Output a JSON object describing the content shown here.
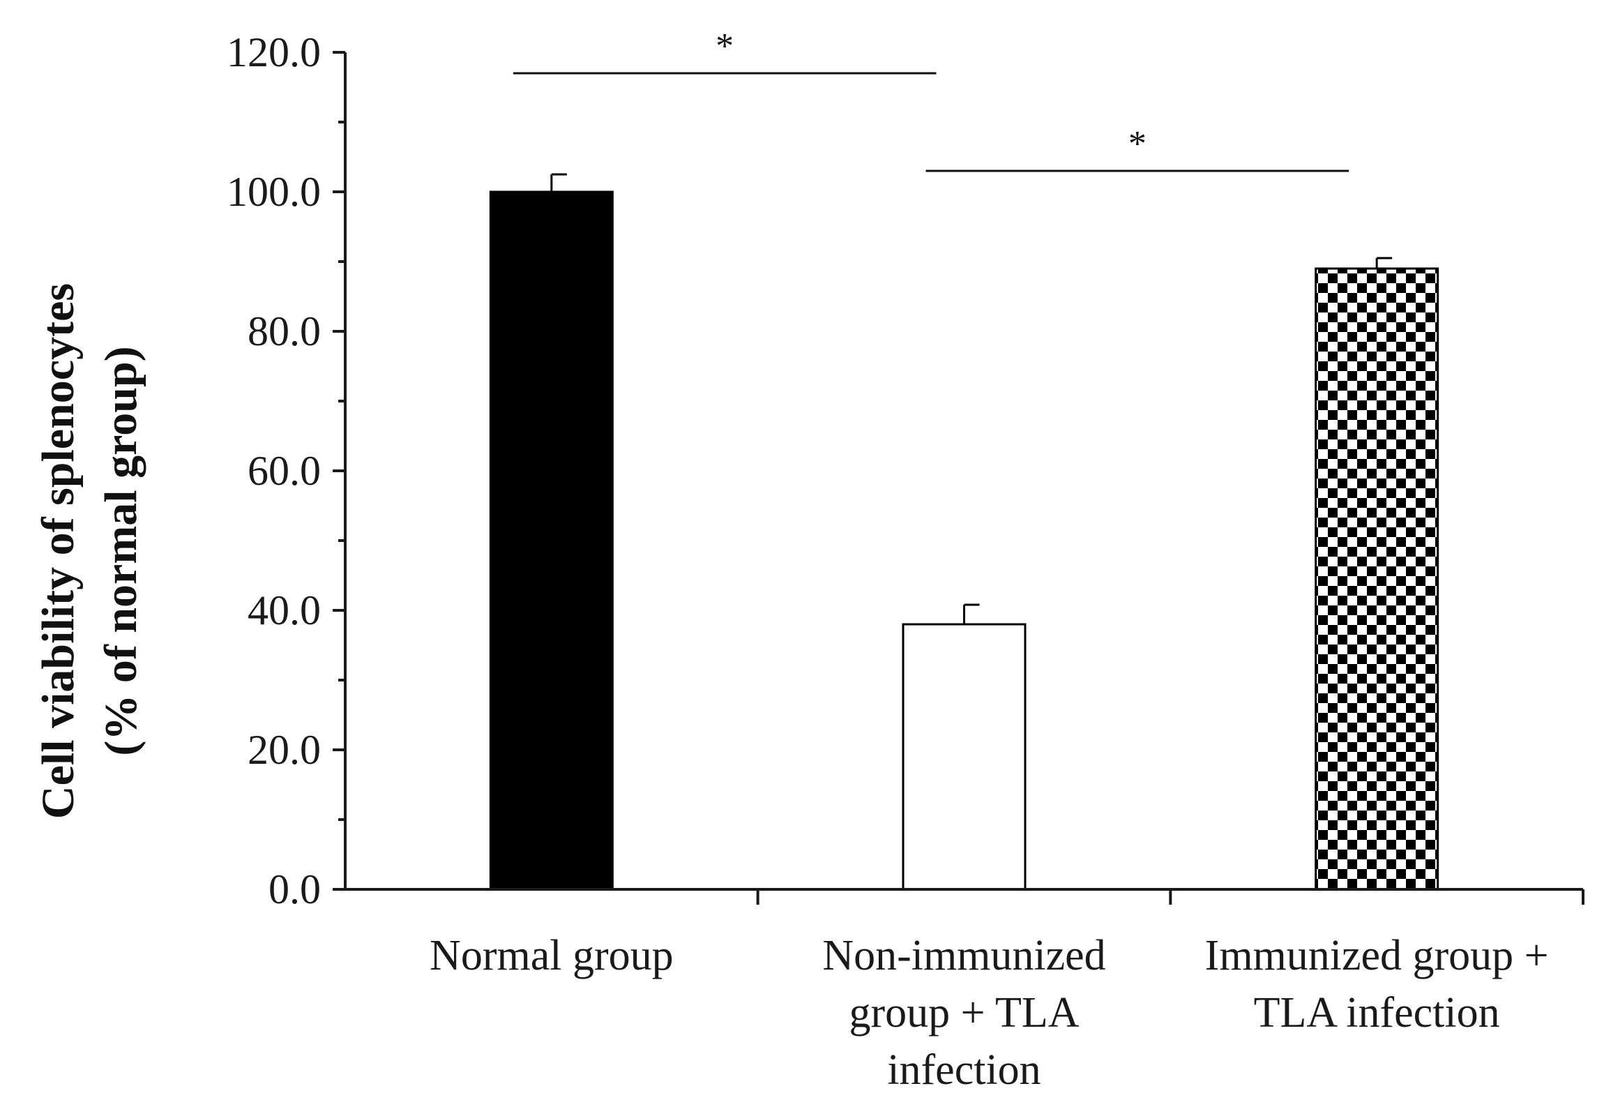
{
  "chart_data": {
    "type": "bar",
    "title": "",
    "xlabel": "",
    "ylabel_lines": [
      "Cell viability of splenocytes",
      "(% of normal group)"
    ],
    "ylim": [
      0,
      120
    ],
    "yticks": [
      0,
      20,
      40,
      60,
      80,
      100,
      120
    ],
    "ytick_labels": [
      "0.0",
      "20.0",
      "40.0",
      "60.0",
      "80.0",
      "100.0",
      "120.0"
    ],
    "categories": [
      {
        "lines": [
          "Normal group"
        ]
      },
      {
        "lines": [
          "Non-immunized",
          "group + TLA",
          "infection"
        ]
      },
      {
        "lines": [
          "Immunized group +",
          "TLA infection"
        ]
      }
    ],
    "values": [
      100.0,
      38.0,
      89.0
    ],
    "errors": [
      2.5,
      2.8,
      1.5
    ],
    "fills": [
      "solid-black",
      "white",
      "checkerboard"
    ],
    "significance": [
      {
        "from": 0,
        "to": 1,
        "label": "*",
        "y": 117
      },
      {
        "from": 1,
        "to": 2,
        "label": "*",
        "y": 103
      }
    ],
    "colors": {
      "bar_solid": "#000000",
      "bar_outline": "#000000",
      "axis": "#1a1a1a"
    }
  }
}
